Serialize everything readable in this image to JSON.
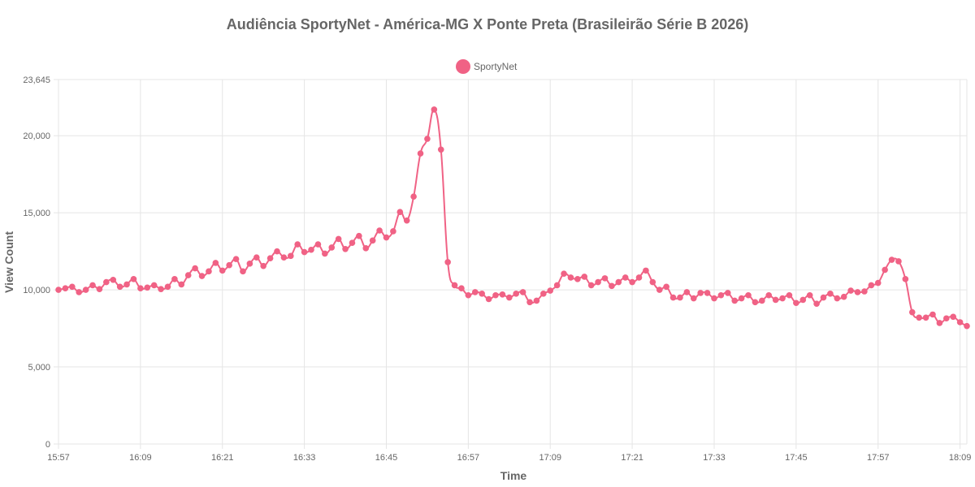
{
  "chart_data": {
    "type": "line",
    "title": "Audiência SportyNet - América-MG X Ponte Preta (Brasileirão Série B 2026)",
    "xlabel": "Time",
    "ylabel": "View Count",
    "ylim": [
      0,
      23645
    ],
    "y_ticks": [
      "0",
      "5,000",
      "10,000",
      "15,000",
      "20,000",
      "23,645"
    ],
    "y_tick_values": [
      0,
      5000,
      10000,
      15000,
      20000,
      23645
    ],
    "x_ticks": [
      "15:57",
      "16:09",
      "16:21",
      "16:33",
      "16:45",
      "16:57",
      "17:09",
      "17:21",
      "17:33",
      "17:45",
      "17:57",
      "18:09"
    ],
    "x_tick_values": [
      0,
      12,
      24,
      36,
      48,
      60,
      72,
      84,
      96,
      108,
      120,
      132
    ],
    "x_range": [
      0,
      133
    ],
    "grid": true,
    "legend_position": "top-center",
    "colors": {
      "series": "#f06285",
      "grid": "#e5e5e5",
      "text": "#666666"
    },
    "series": [
      {
        "name": "SportyNet",
        "x": [
          0,
          1,
          2,
          3,
          4,
          5,
          6,
          7,
          8,
          9,
          10,
          11,
          12,
          13,
          14,
          15,
          16,
          17,
          18,
          19,
          20,
          21,
          22,
          23,
          24,
          25,
          26,
          27,
          28,
          29,
          30,
          31,
          32,
          33,
          34,
          35,
          36,
          37,
          38,
          39,
          40,
          41,
          42,
          43,
          44,
          45,
          46,
          47,
          48,
          49,
          50,
          51,
          52,
          53,
          54,
          55,
          56,
          57,
          58,
          59,
          60,
          61,
          62,
          63,
          64,
          65,
          66,
          67,
          68,
          69,
          70,
          71,
          72,
          73,
          74,
          75,
          76,
          77,
          78,
          79,
          80,
          81,
          82,
          83,
          84,
          85,
          86,
          87,
          88,
          89,
          90,
          91,
          92,
          93,
          94,
          95,
          96,
          97,
          98,
          99,
          100,
          101,
          102,
          103,
          104,
          105,
          106,
          107,
          108,
          109,
          110,
          111,
          112,
          113,
          114,
          115,
          116,
          117,
          118,
          119,
          120,
          121,
          122,
          123,
          124,
          125,
          126,
          127,
          128,
          129,
          130,
          131,
          132,
          133
        ],
        "values": [
          10000,
          10100,
          10200,
          9850,
          10000,
          10300,
          10050,
          10500,
          10650,
          10200,
          10350,
          10700,
          10100,
          10150,
          10300,
          10050,
          10200,
          10700,
          10350,
          10950,
          11400,
          10900,
          11200,
          11750,
          11250,
          11600,
          12000,
          11200,
          11700,
          12100,
          11550,
          12050,
          12500,
          12100,
          12200,
          12950,
          12450,
          12600,
          12950,
          12350,
          12750,
          13300,
          12650,
          13050,
          13500,
          12700,
          13200,
          13850,
          13400,
          13800,
          15050,
          14500,
          16050,
          18850,
          19800,
          21700,
          19100,
          11800,
          10300,
          10100,
          9650,
          9850,
          9750,
          9400,
          9650,
          9700,
          9500,
          9750,
          9850,
          9200,
          9300,
          9750,
          9950,
          10300,
          11050,
          10800,
          10700,
          10850,
          10300,
          10500,
          10750,
          10250,
          10500,
          10800,
          10500,
          10800,
          11250,
          10500,
          10000,
          10200,
          9500,
          9500,
          9850,
          9450,
          9800,
          9800,
          9450,
          9650,
          9800,
          9300,
          9450,
          9650,
          9200,
          9300,
          9650,
          9350,
          9450,
          9650,
          9150,
          9350,
          9650,
          9100,
          9500,
          9750,
          9450,
          9550,
          9950,
          9850,
          9900,
          10300,
          10450,
          11300,
          11950,
          11850,
          10700,
          8550,
          8200,
          8200,
          8400,
          7850,
          8150,
          8250,
          7900,
          7650
        ]
      }
    ]
  }
}
